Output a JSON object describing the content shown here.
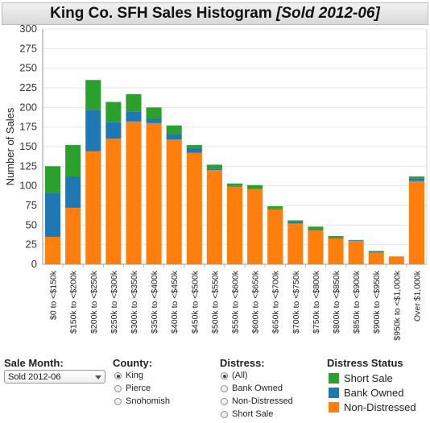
{
  "header": {
    "title": "King Co. SFH Sales Histogram",
    "subtitle": "[Sold 2012-06]"
  },
  "chart_data": {
    "type": "bar",
    "stacked": true,
    "ylabel": "Number of Sales",
    "xlabel": "",
    "ylim": [
      0,
      300
    ],
    "yticks": [
      0,
      25,
      50,
      75,
      100,
      125,
      150,
      175,
      200,
      225,
      250,
      275,
      300
    ],
    "grid": true,
    "categories": [
      "$0 to <$150k",
      "$150k to <$200k",
      "$200k to <$250k",
      "$250k to <$300k",
      "$300k to <$350k",
      "$350k to <$400k",
      "$400k to <$450k",
      "$450k to <$500k",
      "$500k to <$550k",
      "$550k to <$600k",
      "$600k to <$650k",
      "$650k to <$700k",
      "$700k to <$750k",
      "$750k to <$800k",
      "$800k to <$850k",
      "$850k to <$900k",
      "$900k to <$950k",
      "$950k to <$1,000k",
      "Over $1,000k"
    ],
    "series": [
      {
        "name": "Non-Distressed",
        "color": "#ff7f0e",
        "values": [
          35,
          72,
          144,
          160,
          182,
          180,
          159,
          142,
          120,
          99,
          96,
          70,
          52,
          43,
          33,
          30,
          15,
          10,
          106
        ]
      },
      {
        "name": "Bank Owned",
        "color": "#1f77b4",
        "values": [
          56,
          40,
          53,
          21,
          13,
          6,
          7,
          6,
          2,
          1,
          0,
          1,
          2,
          1,
          1,
          1,
          1,
          0,
          3
        ]
      },
      {
        "name": "Short Sale",
        "color": "#2ca02c",
        "values": [
          34,
          40,
          38,
          26,
          22,
          14,
          11,
          4,
          5,
          3,
          5,
          3,
          2,
          4,
          2,
          0,
          1,
          0,
          3
        ]
      }
    ]
  },
  "controls": {
    "sale_month": {
      "label": "Sale Month:",
      "value": "Sold 2012-06"
    },
    "county": {
      "label": "County:",
      "options": [
        "King",
        "Pierce",
        "Snohomish"
      ],
      "selected": "King"
    },
    "distress": {
      "label": "Distress:",
      "options": [
        "(All)",
        "Bank Owned",
        "Non-Distressed",
        "Short Sale"
      ],
      "selected": "(All)"
    }
  },
  "legend": {
    "title": "Distress Status",
    "items": [
      {
        "label": "Short Sale",
        "color": "#2ca02c"
      },
      {
        "label": "Bank Owned",
        "color": "#1f77b4"
      },
      {
        "label": "Non-Distressed",
        "color": "#ff7f0e"
      }
    ]
  }
}
